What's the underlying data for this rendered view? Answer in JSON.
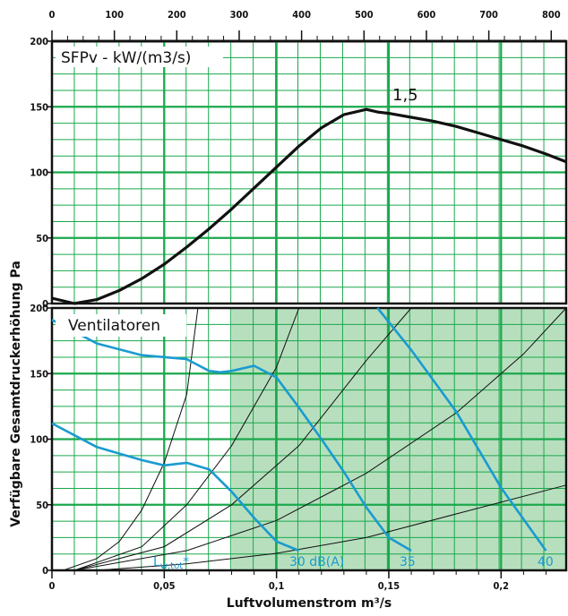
{
  "chart_data": [
    {
      "type": "line",
      "title": "SFPv - kW/(m3/s)",
      "x_top": {
        "ticks": [
          0,
          100,
          200,
          300,
          400,
          500,
          600,
          700,
          800
        ],
        "lim": [
          0,
          824
        ]
      },
      "x": {
        "ticks": [
          0,
          0.05,
          0.1,
          0.15,
          0.2
        ],
        "tick_labels": [
          "0",
          "0,05",
          "0,1",
          "0,15",
          "0,2"
        ],
        "lim": [
          0,
          0.229
        ]
      },
      "ylim": [
        0,
        200
      ],
      "yticks": [
        0,
        50,
        100,
        150,
        200
      ],
      "grid": true,
      "annotation": "1,5",
      "series": [
        {
          "x": [
            0.0,
            0.01,
            0.02,
            0.03,
            0.04,
            0.05,
            0.06,
            0.07,
            0.08,
            0.09,
            0.1,
            0.11,
            0.12,
            0.13,
            0.14,
            0.145,
            0.15,
            0.16,
            0.17,
            0.18,
            0.19,
            0.2,
            0.21,
            0.22,
            0.229
          ],
          "y": [
            4,
            0,
            3,
            10,
            19,
            30,
            43,
            57,
            72,
            88,
            104,
            120,
            134,
            144,
            148,
            146,
            145,
            142,
            139,
            135,
            130,
            125,
            120,
            114,
            108
          ]
        }
      ]
    },
    {
      "type": "line",
      "title": "Ventilatoren",
      "x": {
        "ticks": [
          0,
          0.05,
          0.1,
          0.15,
          0.2
        ],
        "tick_labels": [
          "0",
          "0,05",
          "0,1",
          "0,15",
          "0,2"
        ],
        "lim": [
          0,
          0.229
        ]
      },
      "ylim": [
        0,
        200
      ],
      "yticks": [
        0,
        50,
        100,
        150,
        200
      ],
      "grid": true,
      "shaded_x_from": 0.08,
      "fan_curves": [
        {
          "x": [
            0.0,
            0.02,
            0.04,
            0.06,
            0.07,
            0.075,
            0.08,
            0.09,
            0.1,
            0.11,
            0.12,
            0.13,
            0.14,
            0.15,
            0.16
          ],
          "y": [
            191,
            173,
            164,
            161,
            152,
            151,
            152,
            156,
            147,
            124,
            100,
            75,
            48,
            25,
            15
          ]
        },
        {
          "x": [
            0.0,
            0.02,
            0.04,
            0.05,
            0.055,
            0.06,
            0.07,
            0.08,
            0.09,
            0.1,
            0.11
          ],
          "y": [
            112,
            94,
            84,
            80,
            81,
            82,
            77,
            60,
            40,
            22,
            15
          ]
        },
        {
          "x": [
            0.145,
            0.16,
            0.18,
            0.2,
            0.22
          ],
          "y": [
            200,
            168,
            121,
            63,
            15
          ]
        }
      ],
      "system_curves": [
        {
          "x": [
            0.005,
            0.02,
            0.03,
            0.04,
            0.05,
            0.06,
            0.065
          ],
          "y": [
            0,
            9,
            22,
            46,
            82,
            134,
            200
          ]
        },
        {
          "x": [
            0.01,
            0.04,
            0.06,
            0.08,
            0.1,
            0.11
          ],
          "y": [
            0,
            18,
            50,
            95,
            155,
            200
          ]
        },
        {
          "x": [
            0.01,
            0.05,
            0.08,
            0.11,
            0.14,
            0.16
          ],
          "y": [
            0,
            18,
            50,
            95,
            160,
            200
          ]
        },
        {
          "x": [
            0.01,
            0.06,
            0.1,
            0.14,
            0.18,
            0.21,
            0.229
          ],
          "y": [
            0,
            15,
            38,
            74,
            120,
            165,
            200
          ]
        },
        {
          "x": [
            0.02,
            0.06,
            0.1,
            0.14,
            0.18,
            0.229
          ],
          "y": [
            0,
            5,
            13,
            25,
            43,
            65
          ]
        }
      ],
      "label_lwtot": "Lw,tot",
      "label_lwtot_main": "L",
      "label_lwtot_sub": "w,tot",
      "label_lwtot_star": "*",
      "sound_labels": [
        "30 dB(A)",
        "35",
        "40"
      ]
    }
  ],
  "axes_text": {
    "xlabel": "Luftvolumenstrom m³/s",
    "ylabel": "Verfügbare Gesamtdruckerhöhung Pa"
  },
  "colors": {
    "grid": "#1aa84c",
    "shade": "#b7dfbe",
    "fan": "#1a9bd0",
    "sfp": "#111111",
    "system": "#111111"
  }
}
